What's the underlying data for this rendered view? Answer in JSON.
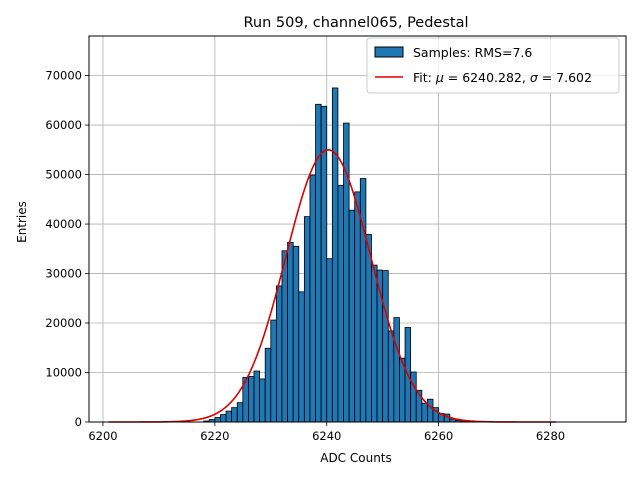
{
  "chart_data": {
    "type": "bar",
    "title": "Run 509, channel065, Pedestal",
    "xlabel": "ADC Counts",
    "ylabel": "Entries",
    "xlim": [
      6197.5,
      6293.5
    ],
    "ylim": [
      0,
      78000
    ],
    "xticks": [
      6200,
      6220,
      6240,
      6260,
      6280
    ],
    "yticks": [
      0,
      10000,
      20000,
      30000,
      40000,
      50000,
      60000,
      70000
    ],
    "grid": true,
    "legend_position": "top-right",
    "histogram": {
      "label": "Samples: RMS=7.6",
      "bin_edges_start": 6201,
      "bin_width": 1,
      "counts": [
        0,
        0,
        0,
        0,
        0,
        0,
        0,
        0,
        0,
        0,
        0,
        0,
        0,
        0,
        0,
        0,
        0,
        200,
        500,
        900,
        1500,
        2200,
        2900,
        3900,
        9000,
        9200,
        10300,
        8700,
        14900,
        20600,
        27500,
        34600,
        36300,
        35500,
        26300,
        41500,
        49900,
        64200,
        63800,
        33000,
        67500,
        47800,
        60400,
        42800,
        46500,
        49200,
        37900,
        31700,
        30700,
        30600,
        18400,
        21100,
        12900,
        19100,
        10100,
        6400,
        3800,
        4600,
        2900,
        1700,
        1600,
        600,
        300,
        200,
        100,
        0,
        0,
        0,
        0,
        0,
        0,
        0,
        0,
        0,
        0,
        0,
        0,
        0,
        0,
        0,
        0,
        0,
        0,
        0,
        0,
        0,
        0,
        0,
        0
      ],
      "color": "#1f77b4",
      "edgecolor": "#000000"
    },
    "fit": {
      "label": "Fit: μ = 6240.282, σ = 7.602",
      "label_parts": [
        "Fit: ",
        "μ",
        " = 6240.282, ",
        "σ",
        " = 7.602"
      ],
      "type": "gaussian",
      "mu": 6240.282,
      "sigma": 7.602,
      "amplitude": 55000,
      "x_range": [
        6201,
        6281
      ],
      "color": "#dd0000"
    }
  }
}
